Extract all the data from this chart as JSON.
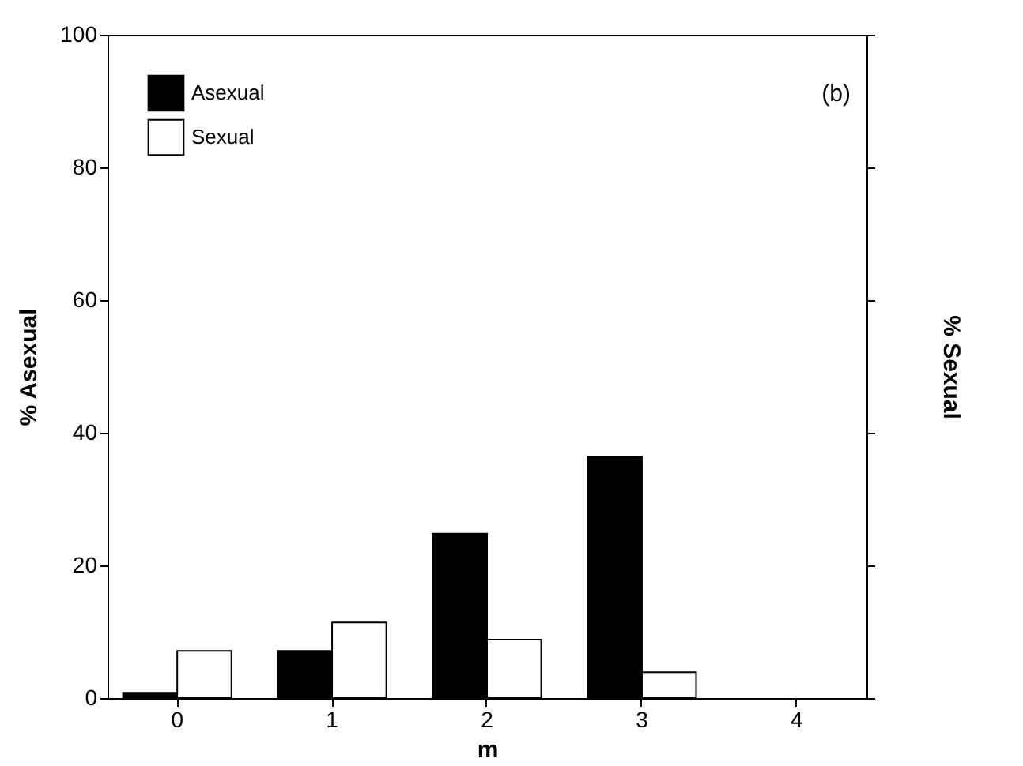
{
  "chart_data": {
    "type": "bar",
    "xlabel": "m",
    "ylabel": "% Asexual",
    "y2label": "% Sexual",
    "categories": [
      "0",
      "1",
      "2",
      "3",
      "4"
    ],
    "series": [
      {
        "name": "Asexual",
        "color": "#000000",
        "values": [
          0.8,
          7.1,
          24.8,
          36.4,
          null
        ]
      },
      {
        "name": "Sexual",
        "color": "#ffffff",
        "values": [
          7.1,
          11.4,
          8.8,
          3.9,
          null
        ]
      }
    ],
    "ylim": [
      0,
      100
    ],
    "yticks": [
      0,
      20,
      40,
      60,
      80,
      100
    ],
    "tick_labels": "xy",
    "grid": false,
    "legend": "top left",
    "annotations": [
      "(b)"
    ]
  }
}
